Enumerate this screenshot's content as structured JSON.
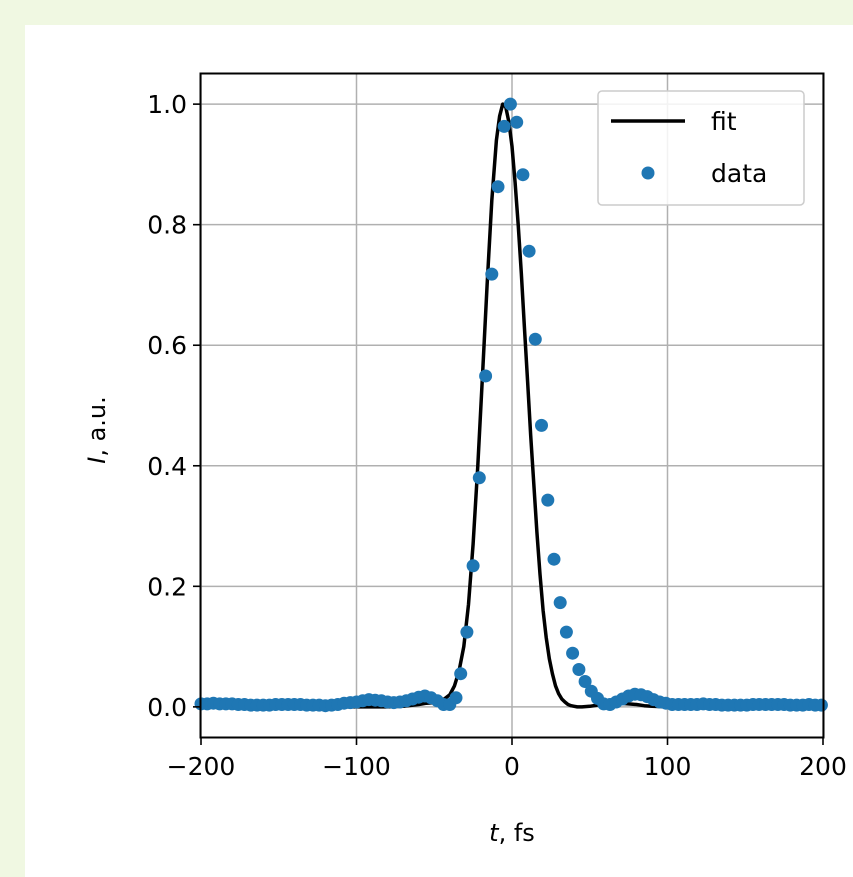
{
  "chart_data": {
    "type": "scatter",
    "title": "",
    "xlabel": {
      "italic": "t",
      "rest": ", fs"
    },
    "ylabel": {
      "italic": "I",
      "rest": ", a.u."
    },
    "xlim": [
      -200,
      200
    ],
    "ylim": [
      -0.05,
      1.05
    ],
    "xticks": [
      -200,
      -100,
      0,
      100,
      200
    ],
    "xtick_labels": [
      "−200",
      "−100",
      "0",
      "100",
      "200"
    ],
    "yticks": [
      0.0,
      0.2,
      0.4,
      0.6,
      0.8,
      1.0
    ],
    "ytick_labels": [
      "0.0",
      "0.2",
      "0.4",
      "0.6",
      "0.8",
      "1.0"
    ],
    "grid": true,
    "legend": {
      "position": "top-right",
      "entries": [
        "fit",
        "data"
      ]
    },
    "colors": {
      "fit": "#000000",
      "data": "#1f77b4",
      "grid": "#b0b0b0",
      "frame": "#000000"
    },
    "series": [
      {
        "name": "fit",
        "kind": "line",
        "x": [
          -200,
          -180,
          -160,
          -140,
          -120,
          -100,
          -90,
          -80,
          -70,
          -60,
          -55,
          -50,
          -45,
          -40,
          -37,
          -34,
          -31,
          -28,
          -25,
          -22,
          -19,
          -16,
          -13,
          -10,
          -8,
          -6,
          -4,
          -2,
          0,
          2,
          4,
          6,
          8,
          10,
          12,
          14,
          16,
          18,
          20,
          22,
          24,
          26,
          28,
          30,
          32,
          34,
          36,
          38,
          40,
          42,
          45,
          50,
          55,
          60,
          65,
          70,
          75,
          80,
          85,
          90,
          100,
          120,
          140,
          160,
          180,
          200
        ],
        "y": [
          0,
          0,
          0,
          0,
          0,
          0,
          0,
          0,
          0.001,
          0.004,
          0.006,
          0.007,
          0.01,
          0.02,
          0.035,
          0.06,
          0.1,
          0.17,
          0.27,
          0.4,
          0.55,
          0.7,
          0.84,
          0.94,
          0.98,
          1.0,
          0.995,
          0.97,
          0.93,
          0.87,
          0.8,
          0.72,
          0.63,
          0.54,
          0.45,
          0.37,
          0.29,
          0.22,
          0.16,
          0.115,
          0.08,
          0.055,
          0.035,
          0.022,
          0.013,
          0.008,
          0.004,
          0.002,
          0.001,
          0,
          0,
          0.001,
          0.003,
          0.004,
          0.005,
          0.006,
          0.005,
          0.004,
          0.002,
          0.001,
          0,
          0,
          0,
          0,
          0,
          0
        ]
      },
      {
        "name": "data",
        "kind": "markers",
        "x": [
          -200,
          -196,
          -192,
          -188,
          -184,
          -180,
          -176,
          -172,
          -168,
          -164,
          -160,
          -156,
          -152,
          -148,
          -144,
          -140,
          -136,
          -132,
          -128,
          -124,
          -120,
          -116,
          -112,
          -108,
          -104,
          -100,
          -96,
          -92,
          -88,
          -84,
          -80,
          -76,
          -72,
          -68,
          -64,
          -60,
          -56,
          -52,
          -48,
          -44,
          -40,
          -36,
          -33,
          -29,
          -25,
          -21,
          -17,
          -13,
          -9,
          -5,
          -1,
          3,
          7,
          11,
          15,
          19,
          23,
          27,
          31,
          35,
          39,
          43,
          47,
          51,
          55,
          59,
          63,
          67,
          71,
          75,
          79,
          83,
          87,
          91,
          95,
          99,
          103,
          107,
          111,
          115,
          119,
          123,
          127,
          131,
          135,
          139,
          143,
          147,
          151,
          155,
          159,
          163,
          167,
          171,
          175,
          179,
          183,
          187,
          191,
          195,
          199
        ],
        "y": [
          0.005,
          0.005,
          0.006,
          0.005,
          0.005,
          0.005,
          0.004,
          0.004,
          0.003,
          0.003,
          0.003,
          0.003,
          0.004,
          0.004,
          0.004,
          0.004,
          0.004,
          0.003,
          0.003,
          0.003,
          0.002,
          0.003,
          0.004,
          0.006,
          0.007,
          0.008,
          0.01,
          0.012,
          0.011,
          0.01,
          0.008,
          0.007,
          0.008,
          0.01,
          0.013,
          0.016,
          0.018,
          0.015,
          0.01,
          0.004,
          0.004,
          0.015,
          0.055,
          0.124,
          0.234,
          0.38,
          0.549,
          0.718,
          0.863,
          0.963,
          1.0,
          0.97,
          0.883,
          0.756,
          0.61,
          0.467,
          0.343,
          0.245,
          0.173,
          0.124,
          0.089,
          0.062,
          0.042,
          0.026,
          0.014,
          0.005,
          0.004,
          0.008,
          0.013,
          0.018,
          0.021,
          0.02,
          0.017,
          0.012,
          0.008,
          0.006,
          0.004,
          0.004,
          0.004,
          0.004,
          0.004,
          0.005,
          0.004,
          0.004,
          0.003,
          0.003,
          0.003,
          0.003,
          0.003,
          0.004,
          0.004,
          0.004,
          0.004,
          0.004,
          0.004,
          0.003,
          0.003,
          0.003,
          0.004,
          0.003,
          0.003
        ]
      }
    ]
  }
}
